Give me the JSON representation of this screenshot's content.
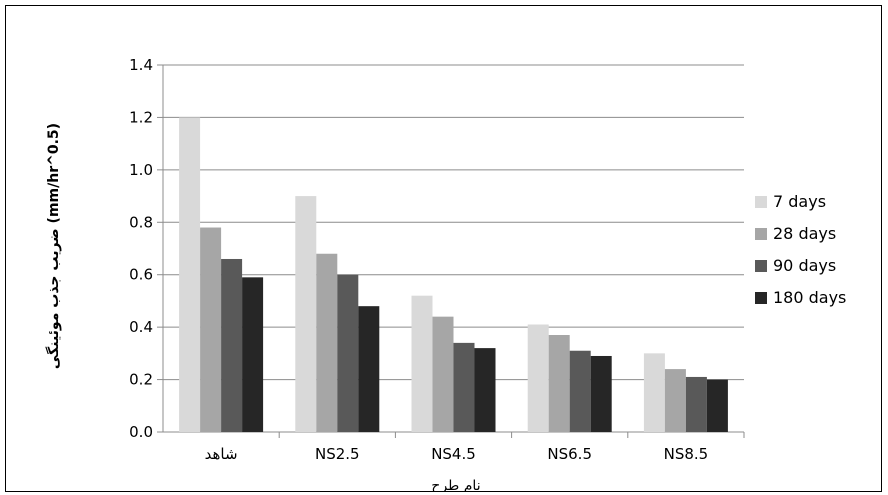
{
  "chart_data": {
    "type": "bar",
    "categories": [
      "شاهد",
      "NS2.5",
      "NS4.5",
      "NS6.5",
      "NS8.5"
    ],
    "series": [
      {
        "name": "7 days",
        "color": "#d9d9d9",
        "values": [
          1.2,
          0.9,
          0.52,
          0.41,
          0.3
        ]
      },
      {
        "name": "28 days",
        "color": "#a6a6a6",
        "values": [
          0.78,
          0.68,
          0.44,
          0.37,
          0.24
        ]
      },
      {
        "name": "90 days",
        "color": "#595959",
        "values": [
          0.66,
          0.6,
          0.34,
          0.31,
          0.21
        ]
      },
      {
        "name": "180 days",
        "color": "#262626",
        "values": [
          0.59,
          0.48,
          0.32,
          0.29,
          0.2
        ]
      }
    ],
    "xlabel": "نام طرح",
    "ylabel": "ضریب جذب موئینگی (mm/hr^0.5)",
    "ylim": [
      0,
      1.4
    ],
    "yticks": [
      "0.0",
      "0.2",
      "0.4",
      "0.6",
      "0.8",
      "1.0",
      "1.2",
      "1.4"
    ],
    "grid": true,
    "legend_position": "right"
  }
}
